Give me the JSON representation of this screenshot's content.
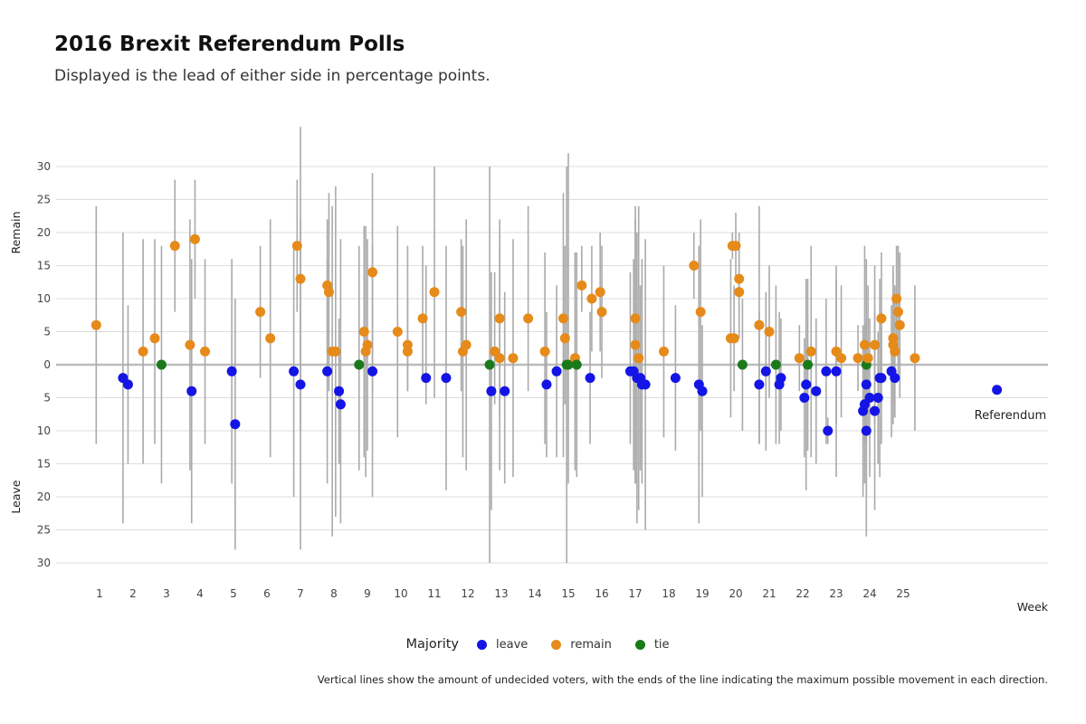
{
  "title": "2016 Brexit Referendum Polls",
  "subtitle": "Displayed is the lead of either side in percentage points.",
  "caption": "Vertical lines show the amount of undecided voters, with the ends of the line indicating the maximum possible movement in each direction.",
  "chart_data": {
    "type": "scatter",
    "xlabel": "Week",
    "ylabel_top": "Remain",
    "ylabel_bottom": "Leave",
    "x_ticks": [
      "1",
      "2",
      "3",
      "4",
      "5",
      "6",
      "7",
      "8",
      "9",
      "10",
      "11",
      "12",
      "13",
      "14",
      "15",
      "16",
      "17",
      "18",
      "19",
      "20",
      "21",
      "22",
      "23",
      "24",
      "25"
    ],
    "y_ticks": [
      "30",
      "25",
      "20",
      "15",
      "10",
      "5",
      "0",
      "5",
      "10",
      "15",
      "20",
      "25",
      "30"
    ],
    "xlim": [
      0.4,
      29.5
    ],
    "ylim": [
      -30,
      30
    ],
    "grid": true,
    "legend": {
      "title": "Majority",
      "position": "bottom",
      "entries": [
        {
          "name": "leave",
          "color": "#1414e6"
        },
        {
          "name": "remain",
          "color": "#e68a1a"
        },
        {
          "name": "tie",
          "color": "#1a7a1a"
        }
      ]
    },
    "colors": {
      "leave": "#1414e6",
      "remain": "#e68a1a",
      "tie": "#1a7a1a",
      "range_line": "#aaaaaa",
      "grid": "#dddddd",
      "zero_line": "#bbbbbb"
    },
    "annotation": {
      "text": "Referendum",
      "x": 28.2,
      "y": -7.7
    },
    "referendum_point": {
      "x": 27.8,
      "y": -3.8
    },
    "points": [
      {
        "x": 0.9,
        "y": 6,
        "lo": -12,
        "hi": 24,
        "majority": "remain"
      },
      {
        "x": 1.7,
        "y": -2,
        "lo": -24,
        "hi": 20,
        "majority": "leave"
      },
      {
        "x": 1.85,
        "y": -3,
        "lo": -15,
        "hi": 9,
        "majority": "leave"
      },
      {
        "x": 2.3,
        "y": 2,
        "lo": -15,
        "hi": 19,
        "majority": "remain"
      },
      {
        "x": 2.65,
        "y": 4,
        "lo": -12,
        "hi": 19,
        "majority": "remain"
      },
      {
        "x": 2.85,
        "y": 0,
        "lo": -18,
        "hi": 18,
        "majority": "tie"
      },
      {
        "x": 3.25,
        "y": 18,
        "lo": 8,
        "hi": 28,
        "majority": "remain"
      },
      {
        "x": 3.7,
        "y": 3,
        "lo": -16,
        "hi": 22,
        "majority": "remain"
      },
      {
        "x": 3.75,
        "y": -4,
        "lo": -24,
        "hi": 16,
        "majority": "leave"
      },
      {
        "x": 3.85,
        "y": 19,
        "lo": 10,
        "hi": 28,
        "majority": "remain"
      },
      {
        "x": 4.15,
        "y": 2,
        "lo": -12,
        "hi": 16,
        "majority": "remain"
      },
      {
        "x": 4.95,
        "y": -1,
        "lo": -18,
        "hi": 16,
        "majority": "leave"
      },
      {
        "x": 5.05,
        "y": -9,
        "lo": -28,
        "hi": 10,
        "majority": "leave"
      },
      {
        "x": 5.8,
        "y": 8,
        "lo": -2,
        "hi": 18,
        "majority": "remain"
      },
      {
        "x": 6.1,
        "y": 4,
        "lo": -14,
        "hi": 22,
        "majority": "remain"
      },
      {
        "x": 6.8,
        "y": -1,
        "lo": -20,
        "hi": 18,
        "majority": "leave"
      },
      {
        "x": 6.9,
        "y": 18,
        "lo": 8,
        "hi": 28,
        "majority": "remain"
      },
      {
        "x": 7.0,
        "y": 13,
        "lo": -10,
        "hi": 36,
        "majority": "remain"
      },
      {
        "x": 7.0,
        "y": -3,
        "lo": -28,
        "hi": 22,
        "majority": "leave"
      },
      {
        "x": 7.8,
        "y": 12,
        "lo": 2,
        "hi": 22,
        "majority": "remain"
      },
      {
        "x": 7.8,
        "y": -1,
        "lo": -18,
        "hi": 16,
        "majority": "leave"
      },
      {
        "x": 7.85,
        "y": 11,
        "lo": -4,
        "hi": 26,
        "majority": "remain"
      },
      {
        "x": 7.95,
        "y": 2,
        "lo": -26,
        "hi": 24,
        "majority": "remain"
      },
      {
        "x": 8.05,
        "y": 2,
        "lo": -23,
        "hi": 27,
        "majority": "remain"
      },
      {
        "x": 8.15,
        "y": -4,
        "lo": -15,
        "hi": 7,
        "majority": "leave"
      },
      {
        "x": 8.2,
        "y": -6,
        "lo": -24,
        "hi": 19,
        "majority": "leave"
      },
      {
        "x": 8.75,
        "y": 0,
        "lo": -16,
        "hi": 18,
        "majority": "tie"
      },
      {
        "x": 8.9,
        "y": 5,
        "lo": -14,
        "hi": 21,
        "majority": "remain"
      },
      {
        "x": 8.95,
        "y": 2,
        "lo": -17,
        "hi": 21,
        "majority": "remain"
      },
      {
        "x": 9.0,
        "y": 3,
        "lo": -13,
        "hi": 19,
        "majority": "remain"
      },
      {
        "x": 9.15,
        "y": 14,
        "lo": -4,
        "hi": 29,
        "majority": "remain"
      },
      {
        "x": 9.15,
        "y": -1,
        "lo": -20,
        "hi": 18,
        "majority": "leave"
      },
      {
        "x": 9.9,
        "y": 5,
        "lo": -11,
        "hi": 21,
        "majority": "remain"
      },
      {
        "x": 10.2,
        "y": 3,
        "lo": -4,
        "hi": 18,
        "majority": "remain"
      },
      {
        "x": 10.2,
        "y": 2,
        "lo": -4,
        "hi": 10,
        "majority": "remain"
      },
      {
        "x": 10.65,
        "y": 7,
        "lo": -2,
        "hi": 18,
        "majority": "remain"
      },
      {
        "x": 10.75,
        "y": -2,
        "lo": -6,
        "hi": 15,
        "majority": "leave"
      },
      {
        "x": 11.0,
        "y": 11,
        "lo": -5,
        "hi": 30,
        "majority": "remain"
      },
      {
        "x": 11.35,
        "y": -2,
        "lo": -19,
        "hi": 18,
        "majority": "leave"
      },
      {
        "x": 11.8,
        "y": 8,
        "lo": -4,
        "hi": 19,
        "majority": "remain"
      },
      {
        "x": 11.85,
        "y": 2,
        "lo": -14,
        "hi": 18,
        "majority": "remain"
      },
      {
        "x": 11.95,
        "y": 3,
        "lo": -16,
        "hi": 22,
        "majority": "remain"
      },
      {
        "x": 12.65,
        "y": 0,
        "lo": -30,
        "hi": 30,
        "majority": "tie"
      },
      {
        "x": 12.7,
        "y": -4,
        "lo": -22,
        "hi": 14,
        "majority": "leave"
      },
      {
        "x": 12.8,
        "y": 2,
        "lo": -6,
        "hi": 14,
        "majority": "remain"
      },
      {
        "x": 12.95,
        "y": 1,
        "lo": -16,
        "hi": 18,
        "majority": "remain"
      },
      {
        "x": 12.95,
        "y": 7,
        "lo": -8,
        "hi": 22,
        "majority": "remain"
      },
      {
        "x": 13.1,
        "y": -4,
        "lo": -18,
        "hi": 11,
        "majority": "leave"
      },
      {
        "x": 13.35,
        "y": 1,
        "lo": -17,
        "hi": 19,
        "majority": "remain"
      },
      {
        "x": 13.8,
        "y": 7,
        "lo": -4,
        "hi": 24,
        "majority": "remain"
      },
      {
        "x": 14.3,
        "y": 2,
        "lo": -12,
        "hi": 17,
        "majority": "remain"
      },
      {
        "x": 14.35,
        "y": -3,
        "lo": -14,
        "hi": 8,
        "majority": "leave"
      },
      {
        "x": 14.65,
        "y": -1,
        "lo": -14,
        "hi": 12,
        "majority": "leave"
      },
      {
        "x": 14.85,
        "y": 7,
        "lo": -14,
        "hi": 26,
        "majority": "remain"
      },
      {
        "x": 14.9,
        "y": 4,
        "lo": -6,
        "hi": 18,
        "majority": "remain"
      },
      {
        "x": 14.95,
        "y": 0,
        "lo": -30,
        "hi": 30,
        "majority": "tie"
      },
      {
        "x": 15.0,
        "y": 0,
        "lo": -18,
        "hi": 32,
        "majority": "tie"
      },
      {
        "x": 15.2,
        "y": 1,
        "lo": -16,
        "hi": 17,
        "majority": "remain"
      },
      {
        "x": 15.25,
        "y": 0,
        "lo": -17,
        "hi": 17,
        "majority": "tie"
      },
      {
        "x": 15.4,
        "y": 12,
        "lo": 8,
        "hi": 18,
        "majority": "remain"
      },
      {
        "x": 15.65,
        "y": -2,
        "lo": -12,
        "hi": 8,
        "majority": "leave"
      },
      {
        "x": 15.7,
        "y": 10,
        "lo": 2,
        "hi": 18,
        "majority": "remain"
      },
      {
        "x": 15.95,
        "y": 11,
        "lo": 2,
        "hi": 20,
        "majority": "remain"
      },
      {
        "x": 16.0,
        "y": 8,
        "lo": -2,
        "hi": 18,
        "majority": "remain"
      },
      {
        "x": 16.85,
        "y": -1,
        "lo": -12,
        "hi": 14,
        "majority": "leave"
      },
      {
        "x": 16.95,
        "y": -1,
        "lo": -16,
        "hi": 16,
        "majority": "leave"
      },
      {
        "x": 17.0,
        "y": 7,
        "lo": -18,
        "hi": 24,
        "majority": "remain"
      },
      {
        "x": 17.0,
        "y": 3,
        "lo": -18,
        "hi": 22,
        "majority": "remain"
      },
      {
        "x": 17.05,
        "y": -2,
        "lo": -24,
        "hi": 20,
        "majority": "leave"
      },
      {
        "x": 17.1,
        "y": 1,
        "lo": -22,
        "hi": 24,
        "majority": "remain"
      },
      {
        "x": 17.15,
        "y": -2,
        "lo": -16,
        "hi": 12,
        "majority": "leave"
      },
      {
        "x": 17.2,
        "y": -3,
        "lo": -18,
        "hi": 16,
        "majority": "leave"
      },
      {
        "x": 17.3,
        "y": -3,
        "lo": -25,
        "hi": 19,
        "majority": "leave"
      },
      {
        "x": 17.85,
        "y": 2,
        "lo": -11,
        "hi": 15,
        "majority": "remain"
      },
      {
        "x": 18.2,
        "y": -2,
        "lo": -13,
        "hi": 9,
        "majority": "leave"
      },
      {
        "x": 18.75,
        "y": 15,
        "lo": 10,
        "hi": 20,
        "majority": "remain"
      },
      {
        "x": 18.9,
        "y": -3,
        "lo": -24,
        "hi": 18,
        "majority": "leave"
      },
      {
        "x": 18.95,
        "y": 8,
        "lo": -10,
        "hi": 22,
        "majority": "remain"
      },
      {
        "x": 19.0,
        "y": -4,
        "lo": -20,
        "hi": 6,
        "majority": "leave"
      },
      {
        "x": 19.85,
        "y": 4,
        "lo": -8,
        "hi": 16,
        "majority": "remain"
      },
      {
        "x": 19.9,
        "y": 18,
        "lo": 16,
        "hi": 20,
        "majority": "remain"
      },
      {
        "x": 19.95,
        "y": 4,
        "lo": -4,
        "hi": 12,
        "majority": "remain"
      },
      {
        "x": 20.0,
        "y": 18,
        "lo": 13,
        "hi": 23,
        "majority": "remain"
      },
      {
        "x": 20.1,
        "y": 13,
        "lo": 8,
        "hi": 18,
        "majority": "remain"
      },
      {
        "x": 20.1,
        "y": 11,
        "lo": 4,
        "hi": 20,
        "majority": "remain"
      },
      {
        "x": 20.2,
        "y": 0,
        "lo": -10,
        "hi": 10,
        "majority": "tie"
      },
      {
        "x": 20.7,
        "y": 6,
        "lo": -12,
        "hi": 24,
        "majority": "remain"
      },
      {
        "x": 20.7,
        "y": -3,
        "lo": -12,
        "hi": 8,
        "majority": "leave"
      },
      {
        "x": 20.9,
        "y": -1,
        "lo": -13,
        "hi": 11,
        "majority": "leave"
      },
      {
        "x": 21.0,
        "y": 5,
        "lo": -5,
        "hi": 15,
        "majority": "remain"
      },
      {
        "x": 21.2,
        "y": 0,
        "lo": -12,
        "hi": 12,
        "majority": "tie"
      },
      {
        "x": 21.3,
        "y": -3,
        "lo": -12,
        "hi": 8,
        "majority": "leave"
      },
      {
        "x": 21.35,
        "y": -2,
        "lo": -10,
        "hi": 7,
        "majority": "leave"
      },
      {
        "x": 21.9,
        "y": 1,
        "lo": -4,
        "hi": 6,
        "majority": "remain"
      },
      {
        "x": 22.05,
        "y": -5,
        "lo": -14,
        "hi": 4,
        "majority": "leave"
      },
      {
        "x": 22.1,
        "y": -3,
        "lo": -19,
        "hi": 13,
        "majority": "leave"
      },
      {
        "x": 22.15,
        "y": 0,
        "lo": -13,
        "hi": 13,
        "majority": "tie"
      },
      {
        "x": 22.25,
        "y": 2,
        "lo": -14,
        "hi": 18,
        "majority": "remain"
      },
      {
        "x": 22.4,
        "y": -4,
        "lo": -15,
        "hi": 7,
        "majority": "leave"
      },
      {
        "x": 22.7,
        "y": -1,
        "lo": -12,
        "hi": 10,
        "majority": "leave"
      },
      {
        "x": 22.75,
        "y": -10,
        "lo": -12,
        "hi": -8,
        "majority": "leave"
      },
      {
        "x": 23.0,
        "y": 2,
        "lo": -9,
        "hi": 13,
        "majority": "remain"
      },
      {
        "x": 23.0,
        "y": -1,
        "lo": -17,
        "hi": 15,
        "majority": "leave"
      },
      {
        "x": 23.15,
        "y": 1,
        "lo": -8,
        "hi": 12,
        "majority": "remain"
      },
      {
        "x": 23.65,
        "y": 1,
        "lo": -4,
        "hi": 6,
        "majority": "remain"
      },
      {
        "x": 23.8,
        "y": -7,
        "lo": -20,
        "hi": 6,
        "majority": "leave"
      },
      {
        "x": 23.85,
        "y": 3,
        "lo": -12,
        "hi": 18,
        "majority": "remain"
      },
      {
        "x": 23.85,
        "y": -6,
        "lo": -18,
        "hi": 6,
        "majority": "leave"
      },
      {
        "x": 23.9,
        "y": -3,
        "lo": -13,
        "hi": 7,
        "majority": "leave"
      },
      {
        "x": 23.9,
        "y": 0,
        "lo": -26,
        "hi": 16,
        "majority": "tie"
      },
      {
        "x": 23.9,
        "y": -10,
        "lo": -20,
        "hi": 0,
        "majority": "leave"
      },
      {
        "x": 23.95,
        "y": 1,
        "lo": -10,
        "hi": 12,
        "majority": "remain"
      },
      {
        "x": 24.0,
        "y": -5,
        "lo": -17,
        "hi": 7,
        "majority": "leave"
      },
      {
        "x": 24.15,
        "y": 3,
        "lo": -9,
        "hi": 15,
        "majority": "remain"
      },
      {
        "x": 24.15,
        "y": -7,
        "lo": -22,
        "hi": 8,
        "majority": "leave"
      },
      {
        "x": 24.25,
        "y": -5,
        "lo": -15,
        "hi": 5,
        "majority": "leave"
      },
      {
        "x": 24.3,
        "y": -2,
        "lo": -17,
        "hi": 13,
        "majority": "leave"
      },
      {
        "x": 24.35,
        "y": 7,
        "lo": -3,
        "hi": 17,
        "majority": "remain"
      },
      {
        "x": 24.35,
        "y": -2,
        "lo": -12,
        "hi": 8,
        "majority": "leave"
      },
      {
        "x": 24.65,
        "y": -1,
        "lo": -11,
        "hi": 9,
        "majority": "leave"
      },
      {
        "x": 24.7,
        "y": 3,
        "lo": -9,
        "hi": 15,
        "majority": "remain"
      },
      {
        "x": 24.7,
        "y": 4,
        "lo": -6,
        "hi": 14,
        "majority": "remain"
      },
      {
        "x": 24.75,
        "y": 2,
        "lo": -8,
        "hi": 12,
        "majority": "remain"
      },
      {
        "x": 24.75,
        "y": -2,
        "lo": -8,
        "hi": 4,
        "majority": "leave"
      },
      {
        "x": 24.8,
        "y": 10,
        "lo": 2,
        "hi": 18,
        "majority": "remain"
      },
      {
        "x": 24.85,
        "y": 8,
        "lo": -2,
        "hi": 18,
        "majority": "remain"
      },
      {
        "x": 24.9,
        "y": 6,
        "lo": -5,
        "hi": 17,
        "majority": "remain"
      },
      {
        "x": 25.35,
        "y": 1,
        "lo": -10,
        "hi": 12,
        "majority": "remain"
      }
    ]
  }
}
